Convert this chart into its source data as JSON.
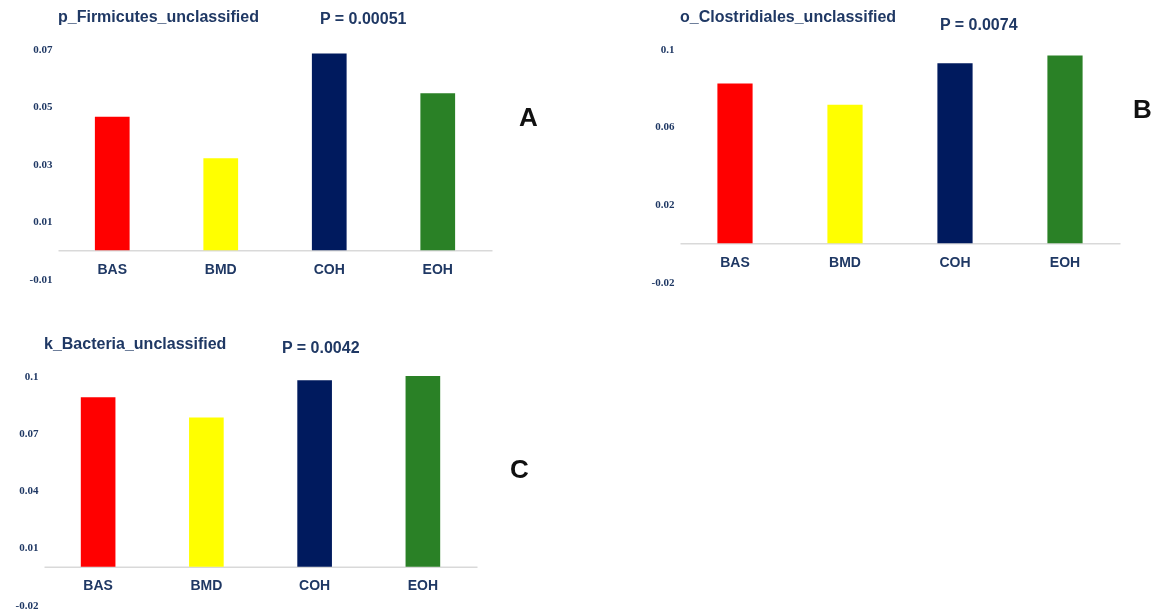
{
  "chart_data": [
    {
      "type": "bar",
      "title": "p_Firmicutes_unclassified",
      "annotations": [
        "P = 0.00051",
        "A"
      ],
      "categories": [
        "BAS",
        "BMD",
        "COH",
        "EOH"
      ],
      "values": [
        0.0464,
        0.032,
        0.0684,
        0.0546
      ],
      "colors": [
        "#ff0000",
        "#ffff00",
        "#001a5e",
        "#2a8126"
      ],
      "ylim": [
        -0.01,
        0.07
      ],
      "yticks": [
        -0.01,
        0.01,
        0.03,
        0.05,
        0.07
      ]
    },
    {
      "type": "bar",
      "title": "o_Clostridiales_unclassified",
      "annotations": [
        "P = 0.0074",
        "B"
      ],
      "categories": [
        "BAS",
        "BMD",
        "COH",
        "EOH"
      ],
      "values": [
        0.0822,
        0.0713,
        0.0927,
        0.0966
      ],
      "colors": [
        "#ff0000",
        "#ffff00",
        "#001a5e",
        "#2a8126"
      ],
      "ylim": [
        -0.02,
        0.1
      ],
      "yticks": [
        -0.02,
        0.02,
        0.06,
        {
          "value": 0.1,
          "label": "0.1"
        }
      ]
    },
    {
      "type": "bar",
      "title": "k_Bacteria_unclassified",
      "annotations": [
        "P = 0.0042",
        "C"
      ],
      "categories": [
        "BAS",
        "BMD",
        "COH",
        "EOH"
      ],
      "values": [
        0.0888,
        0.0783,
        0.0978,
        0.1
      ],
      "colors": [
        "#ff0000",
        "#ffff00",
        "#001a5e",
        "#2a8126"
      ],
      "ylim": [
        -0.02,
        0.1
      ],
      "yticks": [
        -0.02,
        0.01,
        0.04,
        0.07,
        {
          "value": 0.1,
          "label": "0.1"
        }
      ]
    }
  ]
}
